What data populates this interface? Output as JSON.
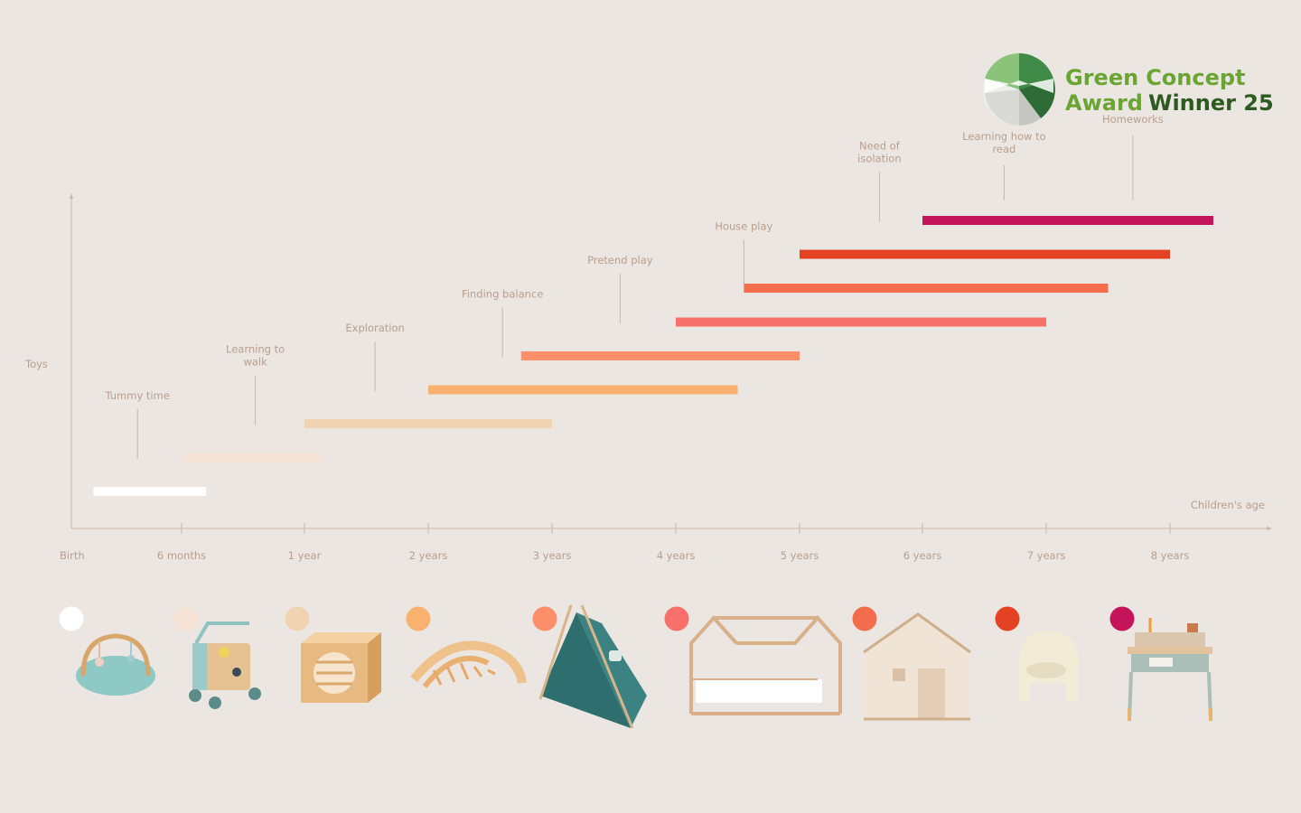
{
  "chart_data": {
    "type": "bar",
    "ylabel": "Toys",
    "xlabel": "Children's age",
    "x_ticks": [
      {
        "value": 0,
        "label": "Birth"
      },
      {
        "value": 0.5,
        "label": "6 months"
      },
      {
        "value": 1,
        "label": "1 year"
      },
      {
        "value": 2,
        "label": "2 years"
      },
      {
        "value": 3,
        "label": "3 years"
      },
      {
        "value": 4,
        "label": "4 years"
      },
      {
        "value": 5,
        "label": "5 years"
      },
      {
        "value": 6,
        "label": "6 years"
      },
      {
        "value": 7,
        "label": "7 years"
      },
      {
        "value": 8,
        "label": "8 years"
      }
    ],
    "bars": [
      {
        "start": 0.1,
        "end": 0.6,
        "color": "#ffffff",
        "stage": "Tummy time",
        "stage_at": 0.3
      },
      {
        "start": 0.5,
        "end": 1.15,
        "color": "#f7e4d6",
        "stage": "Learning to walk",
        "stage_at": 0.8
      },
      {
        "start": 1.0,
        "end": 3.0,
        "color": "#f1d3b2",
        "stage": "Exploration",
        "stage_at": 1.57
      },
      {
        "start": 2.0,
        "end": 4.5,
        "color": "#f8b16e",
        "stage": "Finding balance",
        "stage_at": 2.6
      },
      {
        "start": 2.75,
        "end": 5.0,
        "color": "#fc8f6a",
        "stage": "Pretend play",
        "stage_at": 3.55
      },
      {
        "start": 4.0,
        "end": 7.0,
        "color": "#f7716a",
        "stage": "House play",
        "stage_at": 4.55
      },
      {
        "start": 4.55,
        "end": 7.5,
        "color": "#f36d4c",
        "stage": null
      },
      {
        "start": 5.0,
        "end": 8.0,
        "color": "#e34322",
        "stage": "Need of isolation",
        "stage_at": 5.65
      },
      {
        "start": 6.0,
        "end": 8.35,
        "color": "#c4155a",
        "stage": null
      }
    ],
    "extra_stages": [
      {
        "label": "Learning how to read",
        "at": 6.66
      },
      {
        "label": "Homeworks",
        "at": 7.7
      }
    ],
    "grid": false,
    "legend": "none"
  },
  "products": [
    {
      "name": "play-gym",
      "color": "#ffffff",
      "icon": "play-gym-icon"
    },
    {
      "name": "activity-walker",
      "color": "#f7e4d6",
      "icon": "walker-icon"
    },
    {
      "name": "play-cube",
      "color": "#f1d3b2",
      "icon": "cube-icon"
    },
    {
      "name": "climbing-arch",
      "color": "#f8b16e",
      "icon": "arch-icon"
    },
    {
      "name": "teepee-tent",
      "color": "#fc8f6a",
      "icon": "tent-icon"
    },
    {
      "name": "house-bed",
      "color": "#f7716a",
      "icon": "house-bed-icon"
    },
    {
      "name": "play-house",
      "color": "#f36d4c",
      "icon": "play-house-icon"
    },
    {
      "name": "armchair",
      "color": "#e34322",
      "icon": "armchair-icon"
    },
    {
      "name": "desk",
      "color": "#c4155a",
      "icon": "desk-icon"
    }
  ],
  "award": {
    "line1_a": "Green",
    "line1_b": "Concept",
    "line2_a": "Award",
    "line2_b": "Winner 25",
    "color_light": "#6aa532",
    "color_dark": "#2d5a1f"
  }
}
